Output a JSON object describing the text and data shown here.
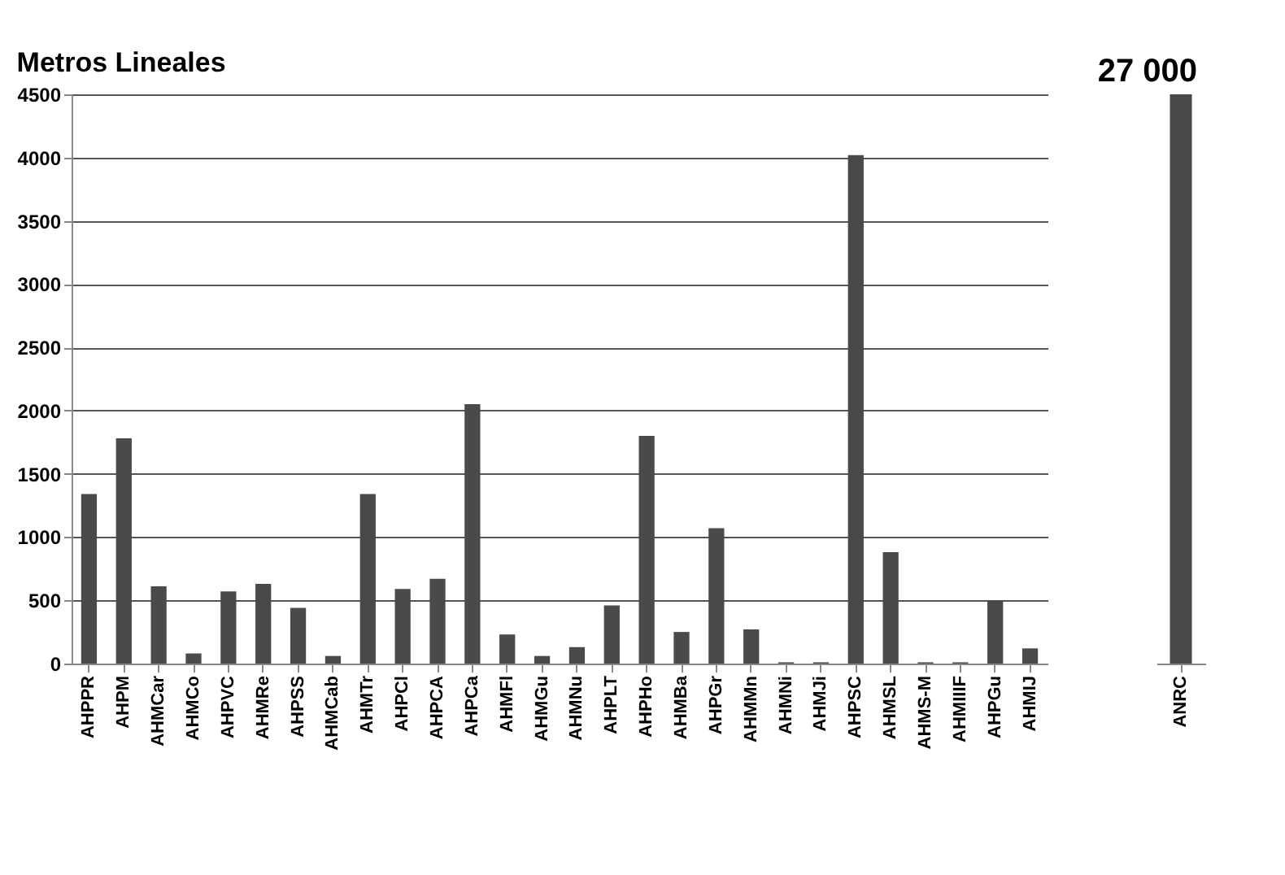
{
  "chart_data": [
    {
      "type": "bar",
      "title": "Metros Lineales",
      "color": "#4a4a4a",
      "grid": "y",
      "categories": [
        "AHPPR",
        "AHPM",
        "AHMCar",
        "AHMCo",
        "AHPVC",
        "AHMRe",
        "AHPSS",
        "AHMCab",
        "AHMTr",
        "AHPCl",
        "AHPCA",
        "AHPCa",
        "AHMFl",
        "AHMGu",
        "AHMNu",
        "AHPLT",
        "AHPHo",
        "AHMBa",
        "AHPGr",
        "AHMMn",
        "AHMNi",
        "AHMJi",
        "AHPSC",
        "AHMSL",
        "AHMS-M",
        "AHMIIIF",
        "AHPGu",
        "AHMIJ"
      ],
      "values": [
        1340,
        1780,
        610,
        80,
        570,
        630,
        440,
        60,
        1340,
        590,
        670,
        2050,
        230,
        60,
        130,
        460,
        1800,
        250,
        1070,
        270,
        10,
        10,
        4020,
        880,
        10,
        10,
        500,
        120
      ],
      "ylim": [
        0,
        4500
      ],
      "yticks": [
        0,
        500,
        1000,
        1500,
        2000,
        2500,
        3000,
        3500,
        4000,
        4500
      ]
    },
    {
      "type": "bar",
      "color": "#4a4a4a",
      "categories": [
        "ANRC"
      ],
      "values": [
        27000
      ],
      "value_labels": [
        "27 000"
      ]
    }
  ]
}
